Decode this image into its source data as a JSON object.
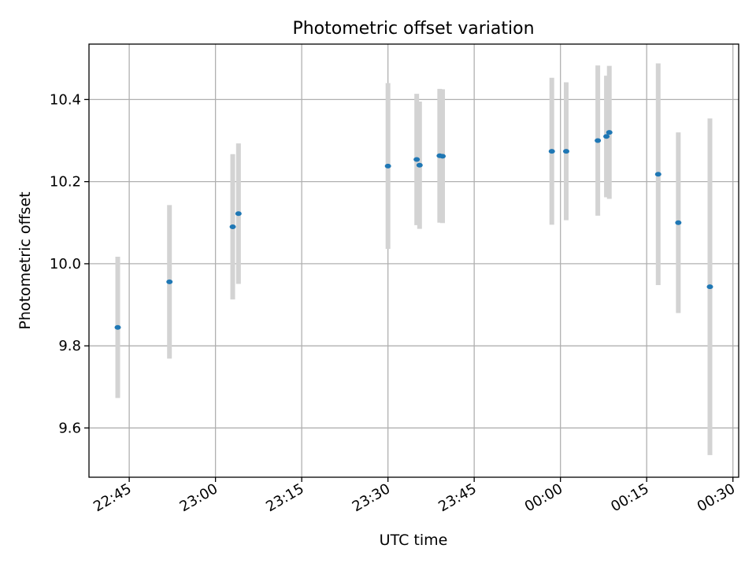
{
  "chart_data": {
    "type": "scatter",
    "title": "Photometric offset variation",
    "xlabel": "UTC time",
    "ylabel": "Photometric offset",
    "x_tick_labels": [
      "22:45",
      "23:00",
      "23:15",
      "23:30",
      "23:45",
      "00:00",
      "00:15",
      "00:30"
    ],
    "y_tick_labels": [
      "9.6",
      "9.8",
      "10.0",
      "10.2",
      "10.4"
    ],
    "x_ticks": [
      "22:45",
      "23:00",
      "23:15",
      "23:30",
      "23:45",
      "00:00",
      "00:15",
      "00:30"
    ],
    "y_ticks": [
      9.6,
      9.8,
      10.0,
      10.2,
      10.4
    ],
    "xlim": [
      "22:38",
      "00:31"
    ],
    "ylim": [
      9.48,
      10.535
    ],
    "grid": true,
    "colors": {
      "point": "#1f77b4",
      "error_bar": "#d3d3d3",
      "grid": "#b0b0b0"
    },
    "series": [
      {
        "points": [
          {
            "x": "22:43",
            "y": 9.845,
            "err": 0.172
          },
          {
            "x": "22:52",
            "y": 9.956,
            "err": 0.187
          },
          {
            "x": "23:03",
            "y": 10.09,
            "err": 0.177
          },
          {
            "x": "23:04",
            "y": 10.122,
            "err": 0.171
          },
          {
            "x": "23:30",
            "y": 10.238,
            "err": 0.202
          },
          {
            "x": "23:35",
            "y": 10.254,
            "err": 0.16
          },
          {
            "x": "23:35.5",
            "y": 10.24,
            "err": 0.155
          },
          {
            "x": "23:39",
            "y": 10.263,
            "err": 0.163
          },
          {
            "x": "23:39.5",
            "y": 10.262,
            "err": 0.163
          },
          {
            "x": "23:58.5",
            "y": 10.274,
            "err": 0.179
          },
          {
            "x": "00:01",
            "y": 10.274,
            "err": 0.168
          },
          {
            "x": "00:06.5",
            "y": 10.3,
            "err": 0.183
          },
          {
            "x": "00:08",
            "y": 10.31,
            "err": 0.148
          },
          {
            "x": "00:08.5",
            "y": 10.32,
            "err": 0.162
          },
          {
            "x": "00:17",
            "y": 10.218,
            "err": 0.27
          },
          {
            "x": "00:20.5",
            "y": 10.1,
            "err": 0.22
          },
          {
            "x": "00:26",
            "y": 9.944,
            "err": 0.41
          }
        ]
      }
    ]
  }
}
